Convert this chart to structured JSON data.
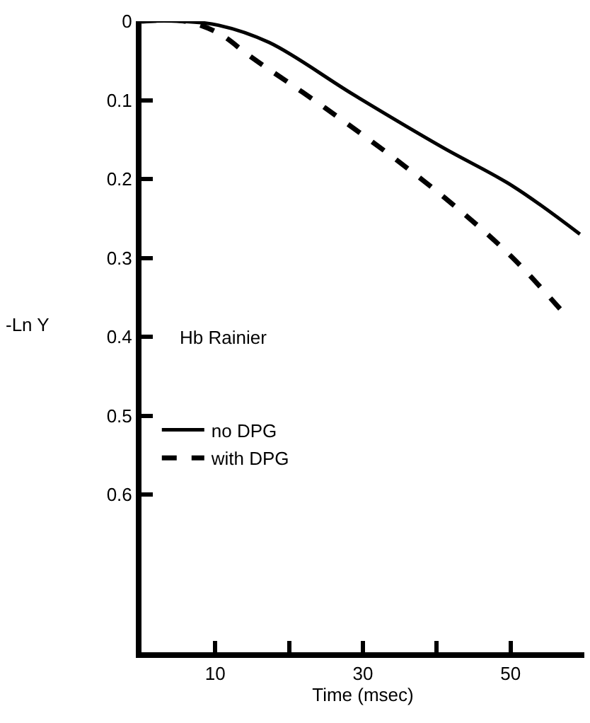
{
  "chart_data": {
    "type": "line",
    "xlabel": "Time (msec)",
    "ylabel": "-Ln Y",
    "annotations": [
      "Hb Rainier"
    ],
    "xlim": [
      0,
      60
    ],
    "xticks": [
      {
        "value": 10,
        "label": "10"
      },
      {
        "value": 20,
        "label": null
      },
      {
        "value": 30,
        "label": "30"
      },
      {
        "value": 40,
        "label": null
      },
      {
        "value": 50,
        "label": "50"
      }
    ],
    "ylim": [
      0.8,
      0
    ],
    "yticks": [
      0,
      0.1,
      0.2,
      0.3,
      0.4,
      0.5,
      0.6
    ],
    "legend": "left",
    "marker": "none",
    "series": [
      {
        "name": "no DPG",
        "color": "#000000",
        "line_style": "solid",
        "x": [
          0,
          5.3,
          10.4,
          17.3,
          28.7,
          40.8,
          50.3,
          59.4
        ],
        "values": [
          0,
          0,
          0.005,
          0.027,
          0.093,
          0.16,
          0.209,
          0.27
        ]
      },
      {
        "name": "with DPG",
        "color": "#000000",
        "line_style": "dashed",
        "x": [
          0,
          5.9,
          10.4,
          14.8,
          24.9,
          35.7,
          43.8,
          50.3,
          57.5
        ],
        "values": [
          0,
          0,
          0.015,
          0.045,
          0.11,
          0.184,
          0.245,
          0.3,
          0.373
        ]
      }
    ]
  }
}
